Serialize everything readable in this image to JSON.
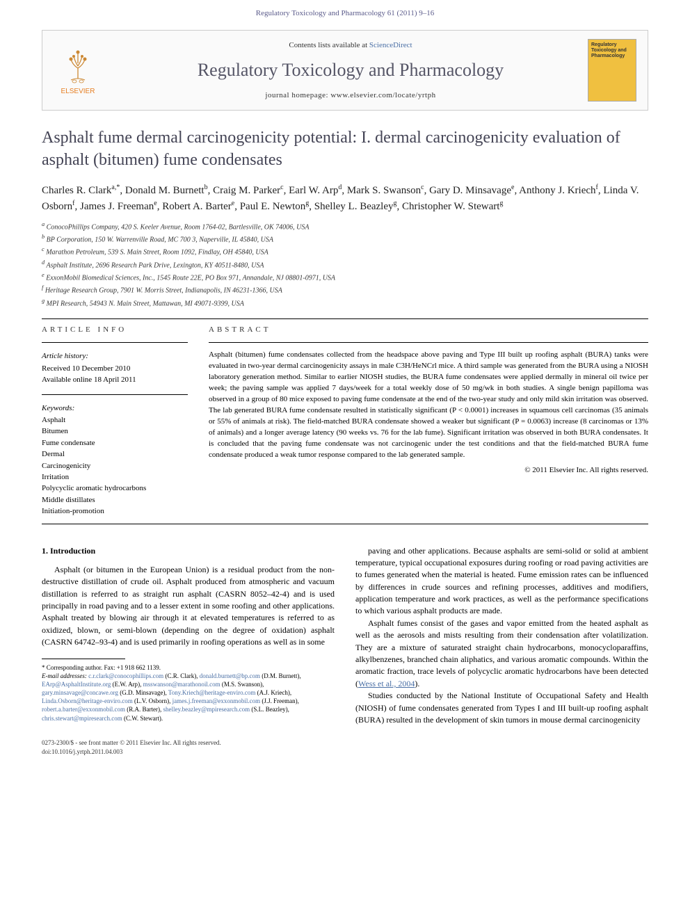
{
  "header": {
    "citation": "Regulatory Toxicology and Pharmacology 61 (2011) 9–16"
  },
  "banner": {
    "contents_prefix": "Contents lists available at ",
    "contents_link": "ScienceDirect",
    "journal_name": "Regulatory Toxicology and Pharmacology",
    "homepage_prefix": "journal homepage: ",
    "homepage": "www.elsevier.com/locate/yrtph",
    "publisher": "ELSEVIER",
    "cover_text": "Regulatory Toxicology and Pharmacology"
  },
  "title": "Asphalt fume dermal carcinogenicity potential: I. dermal carcinogenicity evaluation of asphalt (bitumen) fume condensates",
  "authors_html": "Charles R. Clark<sup>a,*</sup>, Donald M. Burnett<sup>b</sup>, Craig M. Parker<sup>c</sup>, Earl W. Arp<sup>d</sup>, Mark S. Swanson<sup>c</sup>, Gary D. Minsavage<sup>e</sup>, Anthony J. Kriech<sup>f</sup>, Linda V. Osborn<sup>f</sup>, James J. Freeman<sup>e</sup>, Robert A. Barter<sup>e</sup>, Paul E. Newton<sup>g</sup>, Shelley L. Beazley<sup>g</sup>, Christopher W. Stewart<sup>g</sup>",
  "affiliations": [
    "a ConocoPhillips Company, 420 S. Keeler Avenue, Room 1764-02, Bartlesville, OK 74006, USA",
    "b BP Corporation, 150 W. Warrenville Road, MC 700 3, Naperville, IL 45840, USA",
    "c Marathon Petroleum, 539 S. Main Street, Room 1092, Findlay, OH 45840, USA",
    "d Asphalt Institute, 2696 Research Park Drive, Lexington, KY 40511-8480, USA",
    "e ExxonMobil Biomedical Sciences, Inc., 1545 Route 22E, PO Box 971, Annandale, NJ 08801-0971, USA",
    "f Heritage Research Group, 7901 W. Morris Street, Indianapolis, IN 46231-1366, USA",
    "g MPI Research, 54943 N. Main Street, Mattawan, MI 49071-9399, USA"
  ],
  "article_info": {
    "heading": "ARTICLE INFO",
    "history_heading": "Article history:",
    "received": "Received 10 December 2010",
    "online": "Available online 18 April 2011",
    "keywords_heading": "Keywords:",
    "keywords": [
      "Asphalt",
      "Bitumen",
      "Fume condensate",
      "Dermal",
      "Carcinogenicity",
      "Irritation",
      "Polycyclic aromatic hydrocarbons",
      "Middle distillates",
      "Initiation-promotion"
    ]
  },
  "abstract": {
    "heading": "ABSTRACT",
    "text": "Asphalt (bitumen) fume condensates collected from the headspace above paving and Type III built up roofing asphalt (BURA) tanks were evaluated in two-year dermal carcinogenicity assays in male C3H/HeNCrl mice. A third sample was generated from the BURA using a NIOSH laboratory generation method. Similar to earlier NIOSH studies, the BURA fume condensates were applied dermally in mineral oil twice per week; the paving sample was applied 7 days/week for a total weekly dose of 50 mg/wk in both studies. A single benign papilloma was observed in a group of 80 mice exposed to paving fume condensate at the end of the two-year study and only mild skin irritation was observed. The lab generated BURA fume condensate resulted in statistically significant (P < 0.0001) increases in squamous cell carcinomas (35 animals or 55% of animals at risk). The field-matched BURA condensate showed a weaker but significant (P = 0.0063) increase (8 carcinomas or 13% of animals) and a longer average latency (90 weeks vs. 76 for the lab fume). Significant irritation was observed in both BURA condensates. It is concluded that the paving fume condensate was not carcinogenic under the test conditions and that the field-matched BURA fume condensate produced a weak tumor response compared to the lab generated sample.",
    "copyright": "© 2011 Elsevier Inc. All rights reserved."
  },
  "body": {
    "section_heading": "1. Introduction",
    "col1_p1": "Asphalt (or bitumen in the European Union) is a residual product from the non-destructive distillation of crude oil. Asphalt produced from atmospheric and vacuum distillation is referred to as straight run asphalt (CASRN 8052–42-4) and is used principally in road paving and to a lesser extent in some roofing and other applications. Asphalt treated by blowing air through it at elevated temperatures is referred to as oxidized, blown, or semi-blown (depending on the degree of oxidation) asphalt (CASRN 64742–93-4) and is used primarily in roofing operations as well as in some",
    "col2_p1": "paving and other applications. Because asphalts are semi-solid or solid at ambient temperature, typical occupational exposures during roofing or road paving activities are to fumes generated when the material is heated. Fume emission rates can be influenced by differences in crude sources and refining processes, additives and modifiers, application temperature and work practices, as well as the performance specifications to which various asphalt products are made.",
    "col2_p2": "Asphalt fumes consist of the gases and vapor emitted from the heated asphalt as well as the aerosols and mists resulting from their condensation after volatilization. They are a mixture of saturated straight chain hydrocarbons, monocycloparaffins, alkylbenzenes, branched chain aliphatics, and various aromatic compounds. Within the aromatic fraction, trace levels of polycyclic aromatic hydrocarbons have been detected (",
    "col2_p2_ref": "Wess et al., 2004",
    "col2_p2_end": ").",
    "col2_p3": "Studies conducted by the National Institute of Occupational Safety and Health (NIOSH) of fume condensates generated from Types I and III built-up roofing asphalt (BURA) resulted in the development of skin tumors in mouse dermal carcinogenicity"
  },
  "footnotes": {
    "corresponding": "* Corresponding author. Fax: +1 918 662 1139.",
    "email_label": "E-mail addresses:",
    "emails": " c.r.clark@conocophillips.com (C.R. Clark), donald.burnett@bp.com (D.M. Burnett), EArp@AsphaltInstitute.org (E.W. Arp), msswanson@marathonoil.com (M.S. Swanson), gary.minsavage@concawe.org (G.D. Minsavage), Tony.Kriech@heritage-enviro.com (A.J. Kriech), Linda.Osborn@heritage-enviro.com (L.V. Osborn), james.j.freeman@exxonmobil.com (J.J. Freeman), robert.a.barter@exxonmobil.com (R.A. Barter), shelley.beazley@mpiresearch.com (S.L. Beazley), chris.stewart@mpiresearch.com (C.W. Stewart)."
  },
  "footer": {
    "line1": "0273-2300/$ - see front matter © 2011 Elsevier Inc. All rights reserved.",
    "line2": "doi:10.1016/j.yrtph.2011.04.003"
  },
  "colors": {
    "link": "#4a6fa5",
    "elsevier_orange": "#e67e22",
    "title_gray": "#444455",
    "journal_gray": "#555566",
    "cover_yellow": "#f0c040"
  }
}
